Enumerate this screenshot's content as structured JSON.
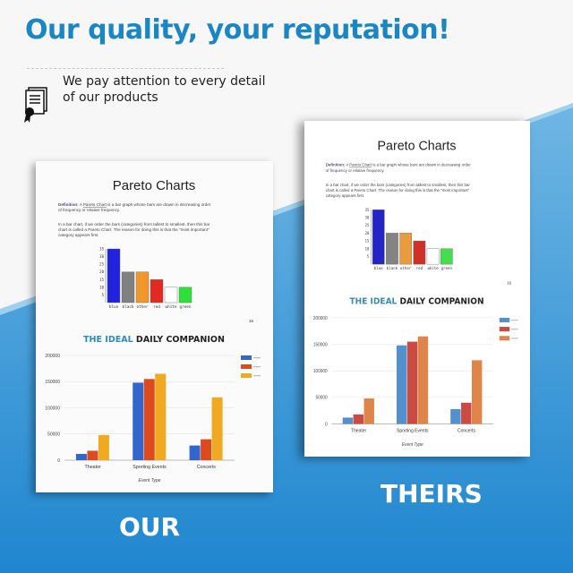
{
  "header": {
    "headline": "Our quality, your reputation!",
    "subtitle_line1": "We pay attention to every detail",
    "subtitle_line2": "of our products",
    "icon": "certificate-icon"
  },
  "document": {
    "title": "Pareto Charts",
    "definition_label": "Definition:",
    "definition_pre": " A ",
    "definition_term": "Pareto Chart",
    "definition_line1": " is a bar graph whose bars are drawn in decreasing order",
    "definition_line2": "of frequency or relative frequency.",
    "para_line1": "In a bar chart, if we order the bars (categories) from tallest to smallest, then this bar",
    "para_line2": "chart is called a Pareto Chart.  The reason for doing this is that the \"most important\"",
    "para_line3": "category appears first.",
    "page_number": "16",
    "companion_title_accent": "THE IDEAL",
    "companion_title_rest": " DAILY COMPANION"
  },
  "labels": {
    "our": "OUR",
    "theirs": "THEIRS"
  },
  "chart_data": [
    {
      "type": "bar",
      "categories": [
        "blue",
        "black",
        "other",
        "red",
        "white",
        "green"
      ],
      "values": [
        35,
        20,
        20,
        15,
        10,
        10
      ],
      "ylim": [
        0,
        35
      ],
      "yticks": [
        5,
        10,
        15,
        20,
        25,
        30,
        35
      ],
      "colors": [
        "#2222dd",
        "#808080",
        "#f0962a",
        "#e02a22",
        "#ffffff",
        "#2fe03a"
      ]
    },
    {
      "type": "bar",
      "title": "THE IDEAL DAILY COMPANION",
      "xlabel": "Event Type",
      "categories": [
        "Theater",
        "Sporting Events",
        "Concerts"
      ],
      "series": [
        {
          "values": [
            12000,
            18000,
            48000
          ]
        },
        {
          "values": [
            148000,
            155000,
            165000
          ]
        },
        {
          "values": [
            28000,
            40000,
            120000
          ]
        }
      ],
      "ylim": [
        0,
        200000
      ],
      "yticks": [
        0,
        50000,
        100000,
        150000,
        200000
      ],
      "grid": true,
      "legend": "right",
      "colors_our": [
        "#3366cc",
        "#dc4a1e",
        "#f2a922"
      ],
      "colors_theirs": [
        "#4a8fd6",
        "#d9443a",
        "#e9803a"
      ]
    }
  ]
}
